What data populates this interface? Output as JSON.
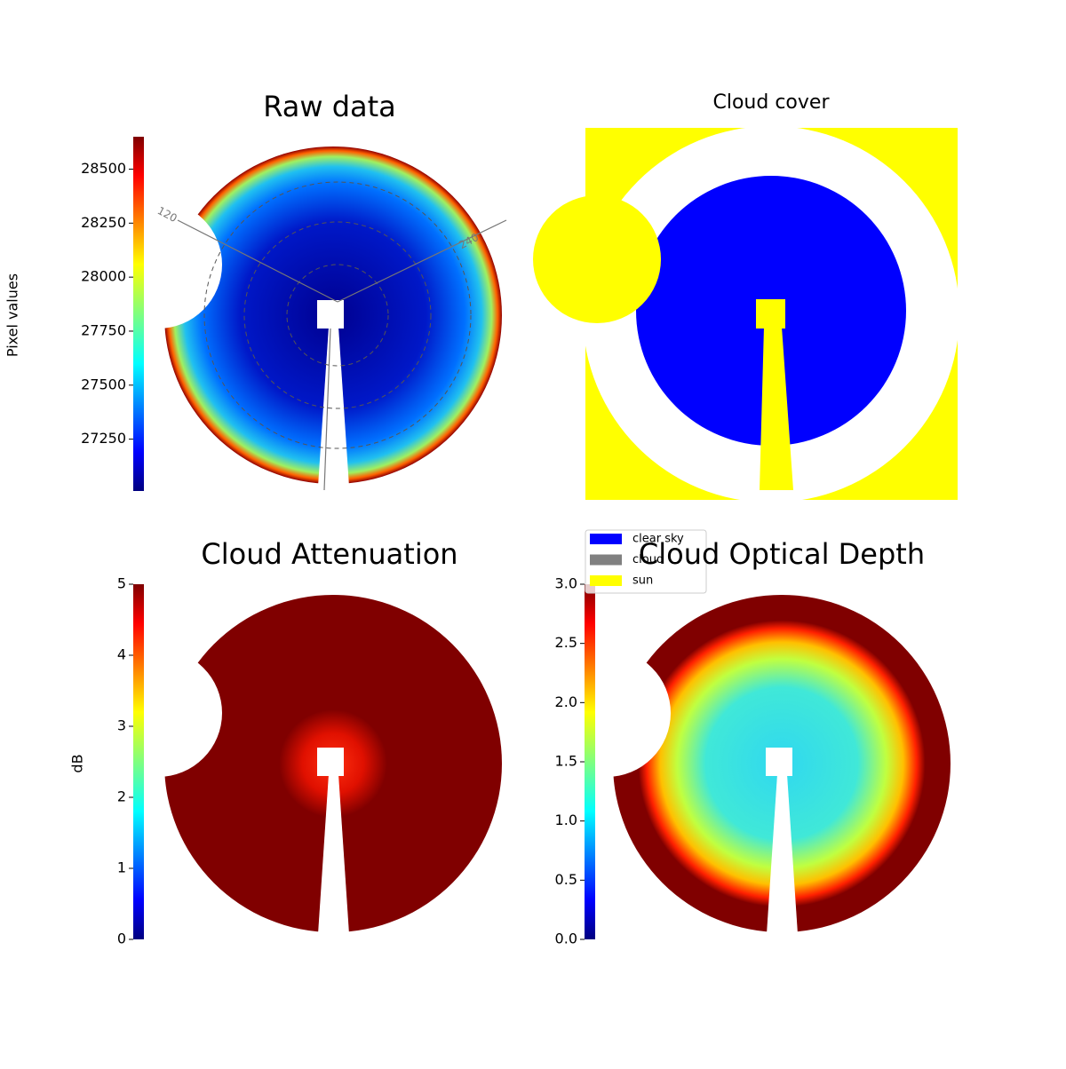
{
  "chart_data": [
    {
      "type": "image",
      "title": "Raw data",
      "ylabel": "Pixel values",
      "ylim": [
        27010,
        28650
      ],
      "yticks": [
        27250,
        27500,
        27750,
        28000,
        28250,
        28500
      ],
      "annotations": [
        "120",
        "240"
      ]
    },
    {
      "type": "legend-image",
      "title": "Cloud cover",
      "series": [
        {
          "name": "clear sky",
          "color": "#0000ff"
        },
        {
          "name": "cloud",
          "color": "#808080"
        },
        {
          "name": "sun",
          "color": "#ffff00"
        }
      ]
    },
    {
      "type": "image",
      "title": "Cloud Attenuation",
      "ylabel": "dB",
      "ylim": [
        0,
        5
      ],
      "yticks": [
        0,
        1,
        2,
        3,
        4,
        5
      ]
    },
    {
      "type": "image",
      "title": "Cloud Optical Depth",
      "ylim": [
        0,
        3
      ],
      "yticks": [
        {
          "value": 0,
          "label": "0.0"
        },
        {
          "value": 0.5,
          "label": "0.5"
        },
        {
          "value": 1,
          "label": "1.0"
        },
        {
          "value": 1.5,
          "label": "1.5"
        },
        {
          "value": 2,
          "label": "2.0"
        },
        {
          "value": 2.5,
          "label": "2.5"
        },
        {
          "value": 3,
          "label": "3.0"
        }
      ]
    }
  ]
}
